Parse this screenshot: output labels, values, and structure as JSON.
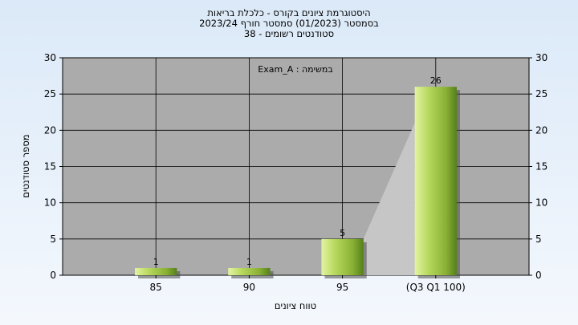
{
  "chart_data": {
    "type": "bar",
    "title_lines": [
      "היסטוגרמת ציונים בקורס - כלכלת בריאות",
      "בסמסטר  (01/2023)  סמסטר חורף 2023/24",
      "סטודנטים רשומים - 38"
    ],
    "annotation": "במשימה : Exam_A",
    "categories": [
      "85",
      "90",
      "95",
      "(Q3 Q1 100)"
    ],
    "values": [
      1,
      1,
      5,
      26
    ],
    "data_labels": [
      "1",
      "1",
      "5",
      "26"
    ],
    "xlabel": "טווח ציונים",
    "ylabel": "מספר סטודנטים",
    "ylim": [
      0,
      30
    ],
    "yticks": [
      0,
      5,
      10,
      15,
      20,
      25,
      30
    ],
    "y_axis_right": true,
    "grid": true,
    "colors": {
      "plot_bg": "#ababab",
      "bar_light": "#d4ec86",
      "bar_mid": "#a6cc42",
      "bar_dark": "#5e8a1e"
    }
  }
}
